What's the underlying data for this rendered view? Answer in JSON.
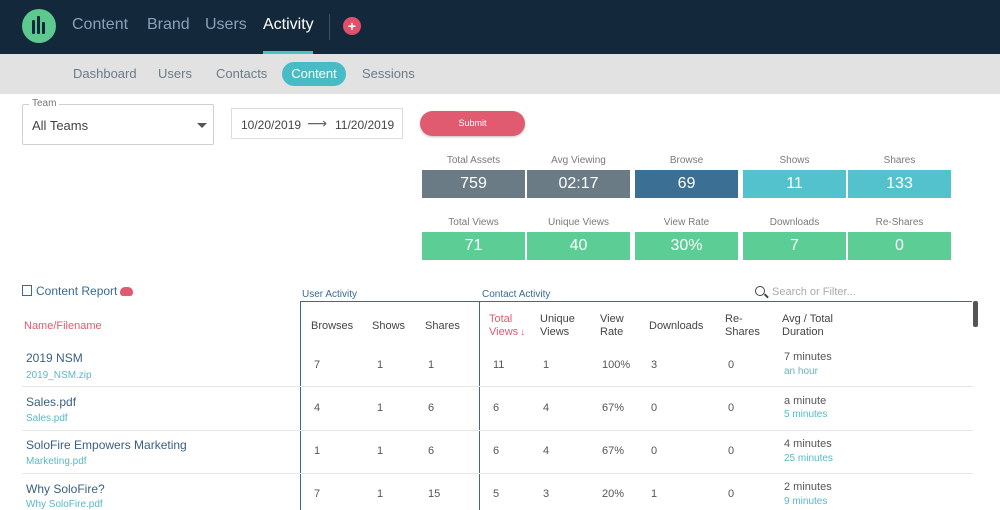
{
  "topnav": {
    "items": [
      {
        "label": "Content"
      },
      {
        "label": "Brand"
      },
      {
        "label": "Users"
      },
      {
        "label": "Activity",
        "active": true
      }
    ],
    "add_label": "+"
  },
  "subnav": {
    "items": [
      {
        "label": "Dashboard"
      },
      {
        "label": "Users"
      },
      {
        "label": "Contacts"
      },
      {
        "label": "Content",
        "active": true
      },
      {
        "label": "Sessions"
      }
    ]
  },
  "filters": {
    "team_label": "Team",
    "team_value": "All Teams",
    "date_start": "10/20/2019",
    "date_arrow": "⟶",
    "date_end": "11/20/2019",
    "submit_label": "Submit"
  },
  "stats_top": [
    {
      "label": "Total Assets",
      "value": "759",
      "color": "#6b7b86"
    },
    {
      "label": "Avg Viewing",
      "value": "02:17",
      "color": "#6b7b86"
    },
    {
      "label": "Browse",
      "value": "69",
      "color": "#3b6f93"
    },
    {
      "label": "Shows",
      "value": "11",
      "color": "#53c2cc"
    },
    {
      "label": "Shares",
      "value": "133",
      "color": "#53c2cc"
    }
  ],
  "stats_bottom": [
    {
      "label": "Total Views",
      "value": "71",
      "color": "#5ccd94"
    },
    {
      "label": "Unique Views",
      "value": "40",
      "color": "#5ccd94"
    },
    {
      "label": "View Rate",
      "value": "30%",
      "color": "#5ccd94"
    },
    {
      "label": "Downloads",
      "value": "7",
      "color": "#5ccd94"
    },
    {
      "label": "Re-Shares",
      "value": "0",
      "color": "#5ccd94"
    }
  ],
  "report": {
    "title": "Content Report",
    "user_activity": "User Activity",
    "contact_activity": "Contact Activity",
    "search_placeholder": "Search or Filter..."
  },
  "table": {
    "headers": {
      "name": "Name/Filename",
      "browses": "Browses",
      "shows": "Shows",
      "shares": "Shares",
      "total_views_1": "Total",
      "total_views_2": "Views",
      "sort_arrow": "↓",
      "unique_1": "Unique",
      "unique_2": "Views",
      "view_rate_1": "View",
      "view_rate_2": "Rate",
      "downloads": "Downloads",
      "reshares_1": "Re-",
      "reshares_2": "Shares",
      "duration_1": "Avg / Total",
      "duration_2": "Duration"
    },
    "rows": [
      {
        "name": "2019 NSM",
        "file": "2019_NSM.zip",
        "browses": "7",
        "shows": "1",
        "shares": "1",
        "total_views": "11",
        "unique_views": "1",
        "view_rate": "100%",
        "downloads": "3",
        "reshares": "0",
        "avg_duration": "7 minutes",
        "total_duration": "an hour"
      },
      {
        "name": "Sales.pdf",
        "file": "Sales.pdf",
        "browses": "4",
        "shows": "1",
        "shares": "6",
        "total_views": "6",
        "unique_views": "4",
        "view_rate": "67%",
        "downloads": "0",
        "reshares": "0",
        "avg_duration": "a minute",
        "total_duration": "5 minutes"
      },
      {
        "name": "SoloFire Empowers Marketing",
        "file": "Marketing.pdf",
        "browses": "1",
        "shows": "1",
        "shares": "6",
        "total_views": "6",
        "unique_views": "4",
        "view_rate": "67%",
        "downloads": "0",
        "reshares": "0",
        "avg_duration": "4 minutes",
        "total_duration": "25 minutes"
      },
      {
        "name": "Why SoloFire?",
        "file": "Why SoloFire.pdf",
        "browses": "7",
        "shows": "1",
        "shares": "15",
        "total_views": "5",
        "unique_views": "3",
        "view_rate": "20%",
        "downloads": "1",
        "reshares": "0",
        "avg_duration": "2 minutes",
        "total_duration": "9 minutes"
      }
    ]
  }
}
